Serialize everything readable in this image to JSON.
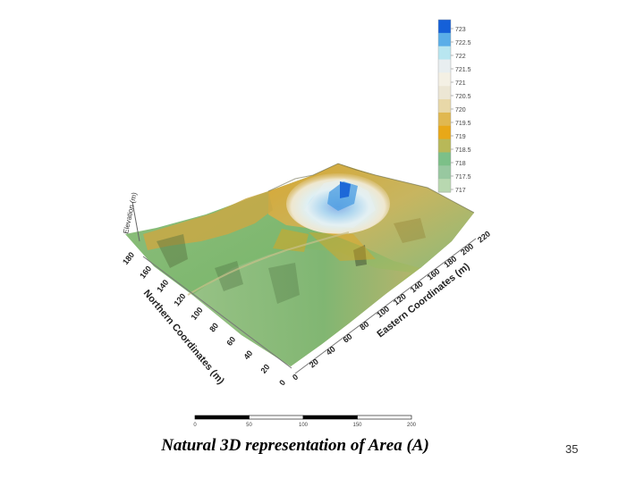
{
  "caption": "Natural 3D representation of Area (A)",
  "page_number": "35",
  "chart_data": {
    "type": "surface3d",
    "x_axis": {
      "label": "Eastern Coordinates (m)",
      "ticks": [
        "0",
        "20",
        "40",
        "60",
        "80",
        "100",
        "120",
        "140",
        "160",
        "180",
        "200",
        "220"
      ]
    },
    "y_axis": {
      "label": "Northern Coordinates (m)",
      "ticks": [
        "0",
        "20",
        "40",
        "60",
        "80",
        "100",
        "120",
        "140",
        "160",
        "180"
      ]
    },
    "z_axis": {
      "label": "Elevation (m)"
    },
    "colorbar": {
      "labels": [
        "723",
        "722.5",
        "722",
        "721.5",
        "721",
        "720.5",
        "720",
        "719.5",
        "719",
        "718.5",
        "718",
        "717.5",
        "717"
      ],
      "colors": [
        "#1560d8",
        "#5aaee8",
        "#b8e6f0",
        "#e8eef0",
        "#f4f0e4",
        "#ece6d4",
        "#e8d8a8",
        "#e0b850",
        "#e8a818",
        "#b8b858",
        "#7cc088",
        "#98c8a0",
        "#b8d8b0"
      ]
    },
    "scale_bar": {
      "ticks": [
        "0",
        "50",
        "100",
        "150",
        "200"
      ]
    }
  }
}
